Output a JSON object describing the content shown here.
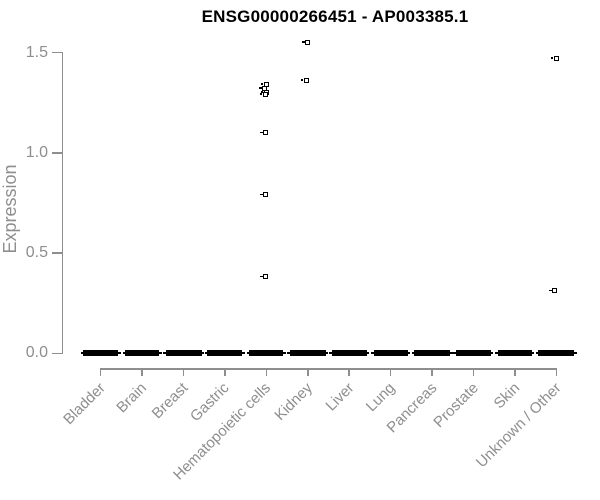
{
  "colors": {
    "title": "#000000",
    "axis_text": "#8e8e8e",
    "axis_line": "#8e8e8e",
    "point": "#000000",
    "background": "#ffffff"
  },
  "chart_data": {
    "type": "scatter",
    "title": "ENSG00000266451 - AP003385.1",
    "xlabel": "",
    "ylabel": "Expression",
    "ylim": [
      0,
      1.6
    ],
    "grid": false,
    "legend": "none",
    "point_style": "open-square",
    "point_color": "#000000",
    "yticks": [
      {
        "label": "0.0",
        "value": 0.0
      },
      {
        "label": "0.5",
        "value": 0.5
      },
      {
        "label": "1.0",
        "value": 1.0
      },
      {
        "label": "1.5",
        "value": 1.5
      }
    ],
    "categories": [
      "Bladder",
      "Brain",
      "Breast",
      "Gastric",
      "Hematopoietic cells",
      "Kidney",
      "Liver",
      "Lung",
      "Pancreas",
      "Prostate",
      "Skin",
      "Unknown / Other"
    ],
    "series": [
      {
        "name": "Bladder",
        "zero_cluster": true,
        "zero_value": 0.0,
        "outliers": []
      },
      {
        "name": "Brain",
        "zero_cluster": true,
        "zero_value": 0.0,
        "outliers": []
      },
      {
        "name": "Breast",
        "zero_cluster": true,
        "zero_value": 0.0,
        "outliers": []
      },
      {
        "name": "Gastric",
        "zero_cluster": true,
        "zero_value": 0.0,
        "outliers": []
      },
      {
        "name": "Hematopoietic cells",
        "zero_cluster": true,
        "zero_value": 0.0,
        "outliers": [
          1.34,
          1.32,
          1.3,
          1.29,
          1.1,
          0.79,
          0.38
        ]
      },
      {
        "name": "Kidney",
        "zero_cluster": true,
        "zero_value": 0.0,
        "outliers": [
          1.55,
          1.36
        ]
      },
      {
        "name": "Liver",
        "zero_cluster": true,
        "zero_value": 0.0,
        "outliers": []
      },
      {
        "name": "Lung",
        "zero_cluster": true,
        "zero_value": 0.0,
        "outliers": []
      },
      {
        "name": "Pancreas",
        "zero_cluster": true,
        "zero_value": 0.0,
        "outliers": []
      },
      {
        "name": "Prostate",
        "zero_cluster": true,
        "zero_value": 0.0,
        "outliers": []
      },
      {
        "name": "Skin",
        "zero_cluster": true,
        "zero_value": 0.0,
        "outliers": []
      },
      {
        "name": "Unknown / Other",
        "zero_cluster": true,
        "zero_value": 0.0,
        "outliers": [
          1.47,
          0.31
        ]
      }
    ]
  }
}
